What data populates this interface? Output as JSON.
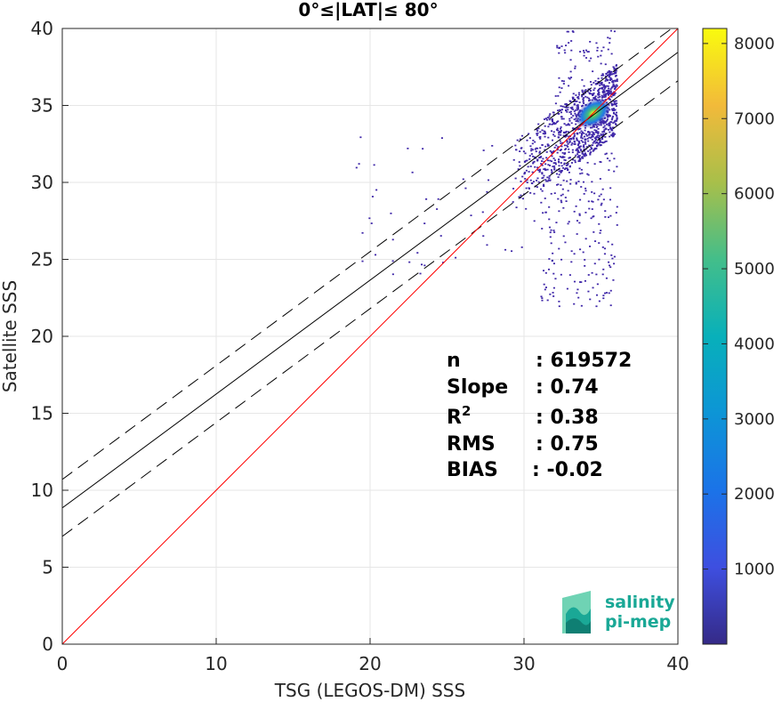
{
  "chart_data": {
    "type": "heatmap",
    "title": "0°≤|LAT|≤ 80°",
    "xlabel": "TSG (LEGOS-DM) SSS",
    "ylabel": "Satellite SSS",
    "xlim": [
      0,
      40
    ],
    "ylim": [
      0,
      40
    ],
    "xticks": [
      "0",
      "10",
      "20",
      "30",
      "40"
    ],
    "yticks": [
      "0",
      "5",
      "10",
      "15",
      "20",
      "25",
      "30",
      "35",
      "40"
    ],
    "grid": true,
    "fit_line": {
      "intercept": 8.85,
      "slope": 0.74
    },
    "fit_band_offset": 1.85,
    "one_to_one_line": {
      "intercept": 0,
      "slope": 1,
      "color": "#ff0000"
    },
    "density_peak": {
      "x": 34.5,
      "y": 34.5,
      "count": 8200
    },
    "stats": [
      {
        "key": "n",
        "sep": ": ",
        "value": "619572"
      },
      {
        "key": "Slope",
        "sep": ": ",
        "value": "0.74"
      },
      {
        "key": "R",
        "sup": "2",
        "sep": ": ",
        "value": "0.38"
      },
      {
        "key": "RMS",
        "sep": ": ",
        "value": "0.75"
      },
      {
        "key": "BIAS",
        "sep": ": ",
        "value": "-0.02"
      }
    ],
    "colorbar": {
      "colormap": "parula",
      "min": 0,
      "max": 8200,
      "ticks": [
        "1000",
        "2000",
        "3000",
        "4000",
        "5000",
        "6000",
        "7000",
        "8000"
      ]
    },
    "colors": {
      "low": "#3e26a8",
      "peak": "#f9fb0e",
      "fit": "#000000",
      "one_to_one": "#ff0000",
      "grid": "#e6e6e6"
    }
  },
  "logo": {
    "line1": "salinity",
    "line2": "pi-mep",
    "icon": "salinity-waves-icon",
    "color": "#1aa896"
  }
}
